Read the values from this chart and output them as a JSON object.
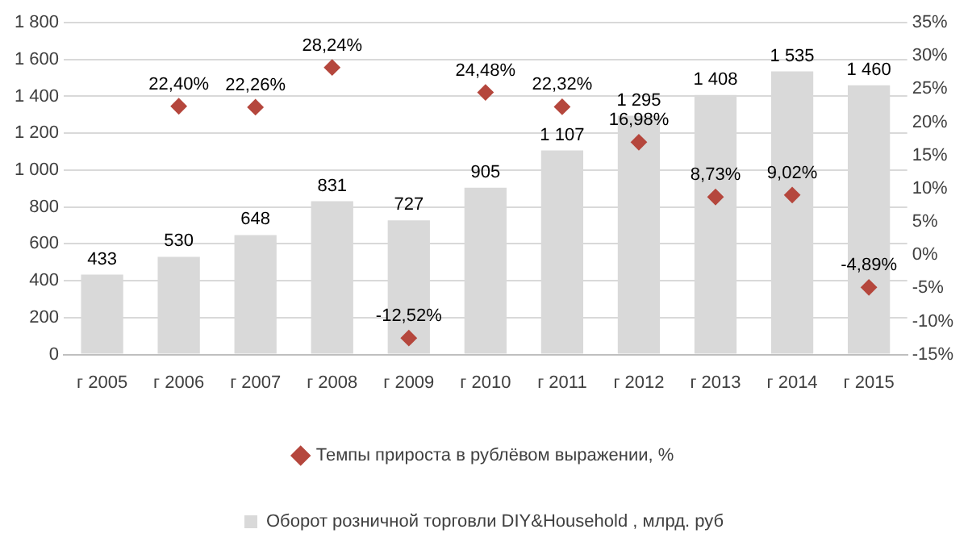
{
  "chart_data": {
    "type": "bar",
    "categories": [
      "г 2005",
      "г 2006",
      "г 2007",
      "г 2008",
      "г 2009",
      "г 2010",
      "г 2011",
      "г 2012",
      "г 2013",
      "г 2014",
      "г 2015"
    ],
    "series": [
      {
        "name": "Оборот розничной торговли DIY&Household , млрд. руб",
        "color": "#d9d9d9",
        "values": [
          433,
          530,
          648,
          831,
          727,
          905,
          1107,
          1295,
          1408,
          1535,
          1460
        ],
        "value_labels": [
          "433",
          "530",
          "648",
          "831",
          "727",
          "905",
          "1 107",
          "1 295",
          "1 408",
          "1 535",
          "1 460"
        ]
      },
      {
        "name": "Темпы прироста в рублёвом выражении, %",
        "type": "scatter",
        "axis": "y2",
        "color": "#b5473d",
        "x": [
          "г 2005",
          "г 2006",
          "г 2007",
          "г 2008",
          "г 2009",
          "г 2010",
          "г 2011",
          "г 2012",
          "г 2013",
          "г 2014",
          "г 2015"
        ],
        "values": [
          null,
          22.4,
          22.26,
          28.24,
          -12.52,
          24.48,
          22.32,
          16.98,
          8.73,
          9.02,
          -4.89
        ],
        "value_labels": [
          null,
          "22,40%",
          "22,26%",
          "28,24%",
          "-12,52%",
          "24,48%",
          "22,32%",
          "16,98%",
          "8,73%",
          "9,02%",
          "-4,89%"
        ]
      }
    ],
    "ylim": [
      0,
      1800
    ],
    "yticks": [
      0,
      200,
      400,
      600,
      800,
      {
        "value": 1000,
        "label": "1 000"
      },
      {
        "value": 1200,
        "label": "1 200"
      },
      {
        "value": 1400,
        "label": "1 400"
      },
      {
        "value": 1600,
        "label": "1 600"
      },
      {
        "value": 1800,
        "label": "1 800"
      }
    ],
    "y2lim": [
      -15,
      35
    ],
    "y2ticks": [
      {
        "value": -15,
        "label": "-15%"
      },
      {
        "value": -10,
        "label": "-10%"
      },
      {
        "value": -5,
        "label": "-5%"
      },
      {
        "value": 0,
        "label": "0%"
      },
      {
        "value": 5,
        "label": "5%"
      },
      {
        "value": 10,
        "label": "10%"
      },
      {
        "value": 15,
        "label": "15%"
      },
      {
        "value": 20,
        "label": "20%"
      },
      {
        "value": 25,
        "label": "25%"
      },
      {
        "value": 30,
        "label": "30%"
      },
      {
        "value": 35,
        "label": "35%"
      }
    ],
    "grid": "y",
    "legend": "bottom",
    "marker": "diamond"
  }
}
